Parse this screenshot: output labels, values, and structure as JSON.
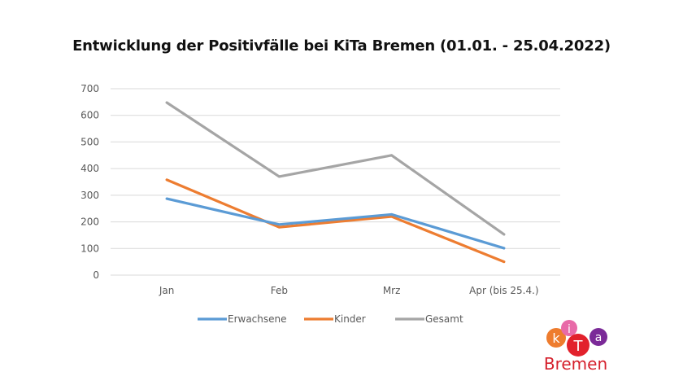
{
  "chart_data": {
    "type": "line",
    "title": "Entwicklung der Positivfälle bei KiTa Bremen (01.01. - 25.04.2022)",
    "xlabel": "",
    "ylabel": "",
    "categories": [
      "Jan",
      "Feb",
      "Mrz",
      "Apr (bis 25.4.)"
    ],
    "ylim": [
      0,
      700
    ],
    "yticks": [
      "0",
      "100",
      "200",
      "300",
      "400",
      "500",
      "600",
      "700"
    ],
    "ytick_values": [
      0,
      100,
      200,
      300,
      400,
      500,
      600,
      700
    ],
    "grid": true,
    "legend_position": "bottom",
    "series": [
      {
        "name": "Erwachsene",
        "color": "#5B9BD5",
        "values": [
          287,
          190,
          228,
          101
        ]
      },
      {
        "name": "Kinder",
        "color": "#ED7D31",
        "values": [
          358,
          180,
          220,
          50
        ]
      },
      {
        "name": "Gesamt",
        "color": "#A5A5A5",
        "values": [
          648,
          370,
          450,
          153
        ]
      }
    ]
  },
  "logo": {
    "letters": [
      "k",
      "i",
      "T",
      "a"
    ],
    "colors": [
      "#ee7c2e",
      "#e86aa8",
      "#e2212c",
      "#7b2a98"
    ],
    "wordmark": "Bremen",
    "wordmark_color": "#d5202c"
  }
}
